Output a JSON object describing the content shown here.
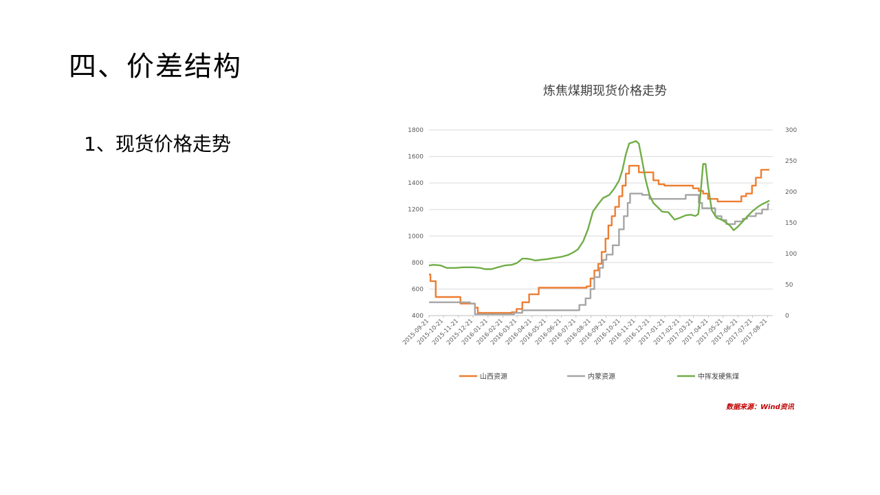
{
  "slide": {
    "title": "四、价差结构",
    "heading": "1、现货价格走势",
    "source": "数据来源：Wind资讯"
  },
  "chart_data": {
    "type": "line",
    "title": "炼焦煤期现货价格走势",
    "x_ticks": [
      "2015-09-21",
      "2015-10-21",
      "2015-11-21",
      "2015-12-21",
      "2016-01-21",
      "2016-02-21",
      "2016-03-21",
      "2016-04-21",
      "2016-05-21",
      "2016-06-21",
      "2016-07-21",
      "2016-08-21",
      "2016-09-21",
      "2016-10-21",
      "2016-11-21",
      "2016-12-21",
      "2017-01-21",
      "2017-02-21",
      "2017-03-21",
      "2017-04-21",
      "2017-05-21",
      "2017-06-21",
      "2017-07-21",
      "2017-08-21"
    ],
    "y_left": {
      "min": 400,
      "max": 1800,
      "ticks": [
        400,
        600,
        800,
        1000,
        1200,
        1400,
        1600,
        1800
      ]
    },
    "y_right": {
      "min": 0,
      "max": 300,
      "ticks": [
        0,
        50,
        100,
        150,
        200,
        250,
        300
      ]
    },
    "grid": true,
    "legend_position": "bottom",
    "series": [
      {
        "name": "山西资源",
        "color": "#ed7d31",
        "axis": "left",
        "step": true,
        "points": [
          [
            "2015-09-21",
            710
          ],
          [
            "2015-09-24",
            660
          ],
          [
            "2015-10-05",
            540
          ],
          [
            "2015-11-25",
            490
          ],
          [
            "2015-12-25",
            460
          ],
          [
            "2015-12-31",
            420
          ],
          [
            "2016-03-10",
            425
          ],
          [
            "2016-03-20",
            450
          ],
          [
            "2016-04-01",
            500
          ],
          [
            "2016-04-15",
            560
          ],
          [
            "2016-05-05",
            610
          ],
          [
            "2016-08-12",
            620
          ],
          [
            "2016-08-20",
            680
          ],
          [
            "2016-08-28",
            740
          ],
          [
            "2016-09-05",
            790
          ],
          [
            "2016-09-12",
            880
          ],
          [
            "2016-09-20",
            980
          ],
          [
            "2016-09-26",
            1080
          ],
          [
            "2016-10-03",
            1150
          ],
          [
            "2016-10-10",
            1220
          ],
          [
            "2016-10-18",
            1300
          ],
          [
            "2016-10-25",
            1380
          ],
          [
            "2016-11-01",
            1470
          ],
          [
            "2016-11-08",
            1530
          ],
          [
            "2016-11-28",
            1480
          ],
          [
            "2016-12-28",
            1420
          ],
          [
            "2017-01-08",
            1390
          ],
          [
            "2017-01-20",
            1380
          ],
          [
            "2017-03-20",
            1360
          ],
          [
            "2017-04-01",
            1340
          ],
          [
            "2017-04-10",
            1320
          ],
          [
            "2017-04-20",
            1280
          ],
          [
            "2017-05-10",
            1260
          ],
          [
            "2017-06-28",
            1300
          ],
          [
            "2017-07-08",
            1320
          ],
          [
            "2017-07-20",
            1380
          ],
          [
            "2017-07-28",
            1440
          ],
          [
            "2017-08-08",
            1500
          ],
          [
            "2017-08-25",
            1500
          ]
        ]
      },
      {
        "name": "内蒙资源",
        "color": "#a5a5a5",
        "axis": "left",
        "step": true,
        "points": [
          [
            "2015-09-21",
            500
          ],
          [
            "2015-12-15",
            490
          ],
          [
            "2015-12-25",
            410
          ],
          [
            "2016-03-15",
            420
          ],
          [
            "2016-04-01",
            440
          ],
          [
            "2016-07-15",
            440
          ],
          [
            "2016-07-28",
            480
          ],
          [
            "2016-08-10",
            530
          ],
          [
            "2016-08-20",
            600
          ],
          [
            "2016-08-28",
            690
          ],
          [
            "2016-09-08",
            760
          ],
          [
            "2016-09-15",
            820
          ],
          [
            "2016-09-22",
            860
          ],
          [
            "2016-10-05",
            930
          ],
          [
            "2016-10-18",
            1050
          ],
          [
            "2016-10-28",
            1150
          ],
          [
            "2016-11-05",
            1250
          ],
          [
            "2016-11-10",
            1320
          ],
          [
            "2016-12-05",
            1310
          ],
          [
            "2016-12-20",
            1280
          ],
          [
            "2017-03-05",
            1310
          ],
          [
            "2017-04-01",
            1250
          ],
          [
            "2017-04-08",
            1210
          ],
          [
            "2017-05-05",
            1150
          ],
          [
            "2017-05-18",
            1120
          ],
          [
            "2017-05-28",
            1090
          ],
          [
            "2017-06-15",
            1110
          ],
          [
            "2017-07-01",
            1130
          ],
          [
            "2017-07-10",
            1150
          ],
          [
            "2017-07-28",
            1170
          ],
          [
            "2017-08-10",
            1200
          ],
          [
            "2017-08-22",
            1240
          ],
          [
            "2017-08-25",
            1240
          ]
        ]
      },
      {
        "name": "中挥发硬焦煤",
        "color": "#70ad47",
        "axis": "right",
        "step": false,
        "points": [
          [
            "2015-09-21",
            81
          ],
          [
            "2015-10-01",
            82
          ],
          [
            "2015-10-15",
            81
          ],
          [
            "2015-10-28",
            77
          ],
          [
            "2015-11-15",
            77
          ],
          [
            "2015-12-01",
            78
          ],
          [
            "2015-12-21",
            78
          ],
          [
            "2016-01-05",
            77
          ],
          [
            "2016-01-15",
            75
          ],
          [
            "2016-01-28",
            75
          ],
          [
            "2016-02-10",
            78
          ],
          [
            "2016-02-25",
            81
          ],
          [
            "2016-03-10",
            82
          ],
          [
            "2016-03-21",
            85
          ],
          [
            "2016-04-01",
            92
          ],
          [
            "2016-04-10",
            92
          ],
          [
            "2016-04-18",
            91
          ],
          [
            "2016-04-28",
            89
          ],
          [
            "2016-05-08",
            90
          ],
          [
            "2016-05-21",
            91
          ],
          [
            "2016-06-05",
            93
          ],
          [
            "2016-06-21",
            95
          ],
          [
            "2016-07-05",
            98
          ],
          [
            "2016-07-15",
            102
          ],
          [
            "2016-07-25",
            107
          ],
          [
            "2016-08-05",
            120
          ],
          [
            "2016-08-15",
            140
          ],
          [
            "2016-08-25",
            168
          ],
          [
            "2016-09-05",
            180
          ],
          [
            "2016-09-15",
            190
          ],
          [
            "2016-09-28",
            195
          ],
          [
            "2016-10-08",
            205
          ],
          [
            "2016-10-18",
            218
          ],
          [
            "2016-10-25",
            235
          ],
          [
            "2016-11-01",
            260
          ],
          [
            "2016-11-08",
            278
          ],
          [
            "2016-11-15",
            280
          ],
          [
            "2016-11-22",
            282
          ],
          [
            "2016-11-28",
            278
          ],
          [
            "2016-12-05",
            250
          ],
          [
            "2016-12-12",
            220
          ],
          [
            "2016-12-20",
            195
          ],
          [
            "2016-12-28",
            182
          ],
          [
            "2017-01-05",
            176
          ],
          [
            "2017-01-15",
            168
          ],
          [
            "2017-01-28",
            167
          ],
          [
            "2017-02-10",
            155
          ],
          [
            "2017-02-21",
            158
          ],
          [
            "2017-03-05",
            162
          ],
          [
            "2017-03-15",
            163
          ],
          [
            "2017-03-25",
            161
          ],
          [
            "2017-03-31",
            164
          ],
          [
            "2017-04-05",
            200
          ],
          [
            "2017-04-10",
            245
          ],
          [
            "2017-04-15",
            245
          ],
          [
            "2017-04-20",
            210
          ],
          [
            "2017-04-28",
            170
          ],
          [
            "2017-05-08",
            158
          ],
          [
            "2017-05-18",
            155
          ],
          [
            "2017-05-28",
            150
          ],
          [
            "2017-06-05",
            145
          ],
          [
            "2017-06-12",
            138
          ],
          [
            "2017-06-20",
            143
          ],
          [
            "2017-07-01",
            152
          ],
          [
            "2017-07-10",
            160
          ],
          [
            "2017-07-20",
            168
          ],
          [
            "2017-07-31",
            175
          ],
          [
            "2017-08-10",
            180
          ],
          [
            "2017-08-21",
            184
          ],
          [
            "2017-08-25",
            186
          ]
        ]
      }
    ]
  }
}
